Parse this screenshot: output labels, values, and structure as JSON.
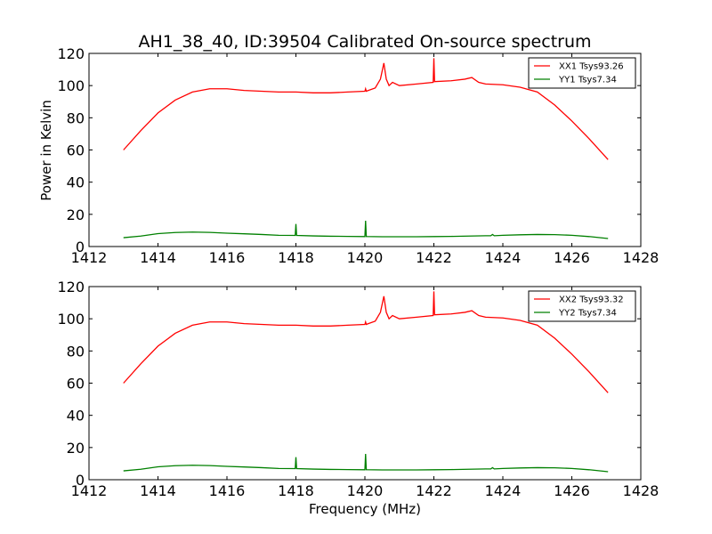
{
  "chart_data": [
    {
      "type": "line",
      "title": "AH1_38_40, ID:39504 Calibrated On-source spectrum",
      "xlabel": "",
      "ylabel": "Power in Kelvin",
      "xlim": [
        1412,
        1428
      ],
      "ylim": [
        0,
        120
      ],
      "xticks": [
        "1412",
        "1414",
        "1416",
        "1418",
        "1420",
        "1422",
        "1424",
        "1426",
        "1428"
      ],
      "yticks": [
        "0",
        "20",
        "40",
        "60",
        "80",
        "100",
        "120"
      ],
      "grid": false,
      "legend_position": "top-right",
      "series": [
        {
          "name": "XX1 Tsys93.26",
          "color": "#ff0000",
          "x": [
            1413.0,
            1413.5,
            1414.0,
            1414.5,
            1415.0,
            1415.5,
            1416.0,
            1416.5,
            1417.0,
            1417.5,
            1418.0,
            1418.5,
            1419.0,
            1419.5,
            1420.0,
            1420.02,
            1420.04,
            1420.1,
            1420.3,
            1420.45,
            1420.55,
            1420.62,
            1420.7,
            1420.8,
            1421.0,
            1421.5,
            1421.98,
            1422.0,
            1422.02,
            1422.5,
            1422.9,
            1423.1,
            1423.3,
            1423.5,
            1424.0,
            1424.5,
            1425.0,
            1425.5,
            1426.0,
            1426.5,
            1427.05
          ],
          "values": [
            60,
            72,
            83,
            91,
            96,
            98,
            98,
            97,
            96.5,
            96,
            96,
            95.5,
            95.5,
            96,
            96.5,
            98,
            96.5,
            97,
            98.5,
            104,
            114,
            104,
            100,
            102,
            100,
            101,
            102,
            117,
            102.5,
            103,
            104,
            105,
            102,
            101,
            100.5,
            99,
            96,
            88,
            78,
            67,
            54
          ]
        },
        {
          "name": "YY1 Tsys7.34",
          "color": "#008000",
          "x": [
            1413.0,
            1413.5,
            1414.0,
            1414.5,
            1415.0,
            1415.5,
            1416.0,
            1416.5,
            1417.0,
            1417.5,
            1417.98,
            1418.0,
            1418.02,
            1418.5,
            1419.0,
            1419.5,
            1420.0,
            1420.02,
            1420.04,
            1420.5,
            1421.0,
            1421.5,
            1422.0,
            1422.5,
            1423.0,
            1423.5,
            1423.65,
            1423.7,
            1423.75,
            1424.0,
            1424.5,
            1425.0,
            1425.5,
            1426.0,
            1426.5,
            1427.05
          ],
          "values": [
            5.5,
            6.5,
            8,
            8.7,
            9,
            8.8,
            8.3,
            7.9,
            7.5,
            7,
            6.9,
            14,
            6.9,
            6.6,
            6.4,
            6.3,
            6.2,
            16,
            6.2,
            6.1,
            6.1,
            6.1,
            6.2,
            6.3,
            6.5,
            6.7,
            6.7,
            7.5,
            6.7,
            7,
            7.3,
            7.5,
            7.4,
            7,
            6.2,
            5
          ]
        }
      ]
    },
    {
      "type": "line",
      "title": "",
      "xlabel": "Frequency (MHz)",
      "ylabel": "",
      "xlim": [
        1412,
        1428
      ],
      "ylim": [
        0,
        120
      ],
      "xticks": [
        "1412",
        "1414",
        "1416",
        "1418",
        "1420",
        "1422",
        "1424",
        "1426",
        "1428"
      ],
      "yticks": [
        "0",
        "20",
        "40",
        "60",
        "80",
        "100",
        "120"
      ],
      "grid": false,
      "legend_position": "top-right",
      "series": [
        {
          "name": "XX2 Tsys93.32",
          "color": "#ff0000",
          "x": [
            1413.0,
            1413.5,
            1414.0,
            1414.5,
            1415.0,
            1415.5,
            1416.0,
            1416.5,
            1417.0,
            1417.5,
            1418.0,
            1418.5,
            1419.0,
            1419.5,
            1420.0,
            1420.02,
            1420.04,
            1420.1,
            1420.3,
            1420.45,
            1420.55,
            1420.62,
            1420.7,
            1420.8,
            1421.0,
            1421.5,
            1421.98,
            1422.0,
            1422.02,
            1422.5,
            1422.9,
            1423.1,
            1423.3,
            1423.5,
            1424.0,
            1424.5,
            1425.0,
            1425.5,
            1426.0,
            1426.5,
            1427.05
          ],
          "values": [
            60,
            72,
            83,
            91,
            96,
            98,
            98,
            97,
            96.5,
            96,
            96,
            95.5,
            95.5,
            96,
            96.5,
            98,
            96.5,
            97,
            98.5,
            104,
            114,
            104,
            100,
            102,
            100,
            101,
            102,
            117,
            102.5,
            103,
            104,
            105,
            102,
            101,
            100.5,
            99,
            96,
            88,
            78,
            67,
            54
          ]
        },
        {
          "name": "YY2 Tsys7.34",
          "color": "#008000",
          "x": [
            1413.0,
            1413.5,
            1414.0,
            1414.5,
            1415.0,
            1415.5,
            1416.0,
            1416.5,
            1417.0,
            1417.5,
            1417.98,
            1418.0,
            1418.02,
            1418.5,
            1419.0,
            1419.5,
            1420.0,
            1420.02,
            1420.04,
            1420.5,
            1421.0,
            1421.5,
            1422.0,
            1422.5,
            1423.0,
            1423.5,
            1423.65,
            1423.7,
            1423.75,
            1424.0,
            1424.5,
            1425.0,
            1425.5,
            1426.0,
            1426.5,
            1427.05
          ],
          "values": [
            5.5,
            6.5,
            8,
            8.7,
            9,
            8.8,
            8.3,
            7.9,
            7.5,
            7,
            6.9,
            14,
            6.9,
            6.6,
            6.4,
            6.3,
            6.2,
            16,
            6.2,
            6.1,
            6.1,
            6.1,
            6.2,
            6.3,
            6.5,
            6.7,
            6.7,
            7.5,
            6.7,
            7,
            7.3,
            7.5,
            7.4,
            7,
            6.2,
            5
          ]
        }
      ]
    }
  ]
}
